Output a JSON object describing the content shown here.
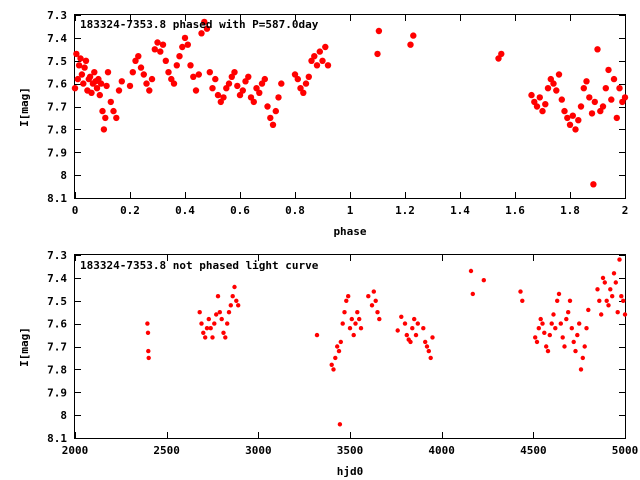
{
  "chart_data": [
    {
      "type": "scatter",
      "title": "183324-7353.8 phased with P=587.0day",
      "xlabel": "phase",
      "ylabel": "I[mag]",
      "xlim": [
        0,
        2
      ],
      "ylim": [
        7.3,
        8.1
      ],
      "y_inverted": true,
      "grid": false,
      "legend": "none",
      "marker_color": "#ff0000",
      "xticks": [
        "0",
        "0.2",
        "0.4",
        "0.6",
        "0.8",
        "1",
        "1.2",
        "1.4",
        "1.6",
        "1.8",
        "2"
      ],
      "yticks": [
        "7.3",
        "7.4",
        "7.5",
        "7.6",
        "7.7",
        "7.8",
        "7.9",
        "8",
        "8.1"
      ],
      "series": [
        {
          "x": [
            0.0,
            0.005,
            0.01,
            0.015,
            0.02,
            0.025,
            0.03,
            0.035,
            0.04,
            0.045,
            0.05,
            0.055,
            0.06,
            0.065,
            0.07,
            0.075,
            0.08,
            0.085,
            0.09,
            0.095,
            0.1,
            0.105,
            0.11,
            0.115,
            0.12,
            0.13,
            0.14,
            0.15,
            0.16,
            0.17,
            0.2,
            0.21,
            0.22,
            0.23,
            0.24,
            0.25,
            0.26,
            0.27,
            0.28,
            0.29,
            0.3,
            0.31,
            0.32,
            0.33,
            0.34,
            0.35,
            0.36,
            0.37,
            0.38,
            0.39,
            0.4,
            0.41,
            0.42,
            0.43,
            0.44,
            0.45,
            0.46,
            0.47,
            0.48,
            0.49,
            0.5,
            0.51,
            0.52,
            0.53,
            0.54,
            0.55,
            0.56,
            0.57,
            0.58,
            0.59,
            0.6,
            0.61,
            0.62,
            0.63,
            0.64,
            0.65,
            0.66,
            0.67,
            0.68,
            0.69,
            0.7,
            0.71,
            0.72,
            0.73,
            0.74,
            0.75,
            0.8,
            0.81,
            0.82,
            0.83,
            0.84,
            0.85,
            0.86,
            0.87,
            0.88,
            0.89,
            0.9,
            0.91,
            0.92,
            1.1,
            1.105,
            1.22,
            1.23,
            1.54,
            1.55,
            1.66,
            1.67,
            1.68,
            1.69,
            1.7,
            1.71,
            1.72,
            1.73,
            1.74,
            1.75,
            1.76,
            1.77,
            1.78,
            1.79,
            1.8,
            1.81,
            1.82,
            1.83,
            1.84,
            1.85,
            1.86,
            1.87,
            1.88,
            1.885,
            1.89,
            1.9,
            1.91,
            1.92,
            1.93,
            1.94,
            1.95,
            1.96,
            1.97,
            1.98,
            1.99,
            2.0
          ],
          "y": [
            7.62,
            7.47,
            7.58,
            7.52,
            7.49,
            7.56,
            7.6,
            7.53,
            7.5,
            7.63,
            7.58,
            7.57,
            7.64,
            7.6,
            7.55,
            7.59,
            7.62,
            7.58,
            7.65,
            7.6,
            7.72,
            7.8,
            7.75,
            7.61,
            7.55,
            7.68,
            7.72,
            7.75,
            7.63,
            7.59,
            7.61,
            7.55,
            7.5,
            7.48,
            7.53,
            7.56,
            7.6,
            7.63,
            7.58,
            7.45,
            7.42,
            7.46,
            7.43,
            7.5,
            7.55,
            7.58,
            7.6,
            7.52,
            7.48,
            7.44,
            7.4,
            7.43,
            7.52,
            7.57,
            7.63,
            7.56,
            7.38,
            7.33,
            7.36,
            7.55,
            7.62,
            7.58,
            7.65,
            7.68,
            7.66,
            7.62,
            7.6,
            7.57,
            7.55,
            7.61,
            7.65,
            7.63,
            7.59,
            7.57,
            7.66,
            7.68,
            7.62,
            7.64,
            7.6,
            7.58,
            7.7,
            7.75,
            7.78,
            7.72,
            7.66,
            7.6,
            7.56,
            7.58,
            7.62,
            7.64,
            7.6,
            7.57,
            7.5,
            7.48,
            7.52,
            7.46,
            7.5,
            7.44,
            7.52,
            7.47,
            7.37,
            7.43,
            7.39,
            7.49,
            7.47,
            7.65,
            7.68,
            7.7,
            7.66,
            7.72,
            7.69,
            7.62,
            7.58,
            7.6,
            7.63,
            7.56,
            7.67,
            7.72,
            7.75,
            7.78,
            7.74,
            7.8,
            7.76,
            7.7,
            7.62,
            7.59,
            7.66,
            7.73,
            8.04,
            7.68,
            7.45,
            7.72,
            7.7,
            7.62,
            7.54,
            7.67,
            7.58,
            7.75,
            7.62,
            7.68,
            7.66
          ]
        }
      ],
      "annotation": "183324-7353.8 phased with P=587.0day"
    },
    {
      "type": "scatter",
      "title": "183324-7353.8 not phased light curve",
      "xlabel": "hjd0",
      "ylabel": "I[mag]",
      "xlim": [
        2000,
        5000
      ],
      "ylim": [
        7.3,
        8.1
      ],
      "y_inverted": true,
      "grid": false,
      "legend": "none",
      "marker_color": "#ff0000",
      "xticks": [
        "2000",
        "2500",
        "3000",
        "3500",
        "4000",
        "4500",
        "5000"
      ],
      "yticks": [
        "7.3",
        "7.4",
        "7.5",
        "7.6",
        "7.7",
        "7.8",
        "7.9",
        "8",
        "8.1"
      ],
      "series": [
        {
          "x": [
            2395,
            2398,
            2400,
            2402,
            2680,
            2690,
            2700,
            2710,
            2720,
            2730,
            2740,
            2750,
            2760,
            2770,
            2780,
            2790,
            2800,
            2810,
            2820,
            2830,
            2840,
            2850,
            2860,
            2870,
            2880,
            2890,
            3320,
            3400,
            3410,
            3420,
            3430,
            3440,
            3450,
            3460,
            3470,
            3480,
            3490,
            3500,
            3510,
            3520,
            3530,
            3540,
            3550,
            3560,
            3600,
            3620,
            3630,
            3640,
            3650,
            3660,
            3760,
            3780,
            3800,
            3810,
            3820,
            3830,
            3840,
            3850,
            3860,
            3870,
            3900,
            3910,
            3920,
            3930,
            3940,
            3950,
            4160,
            4170,
            4230,
            4430,
            4440,
            4510,
            4520,
            4530,
            4540,
            4550,
            4560,
            4570,
            4580,
            4590,
            4600,
            4610,
            4620,
            4630,
            4640,
            4650,
            4660,
            4670,
            4680,
            4690,
            4700,
            4710,
            4720,
            4730,
            4740,
            4750,
            4760,
            4770,
            4780,
            4790,
            4800,
            4850,
            4860,
            4870,
            4880,
            4890,
            4900,
            4910,
            4920,
            4930,
            4940,
            4950,
            4960,
            4970,
            4980,
            4990,
            5000,
            3445
          ],
          "y": [
            7.6,
            7.64,
            7.72,
            7.75,
            7.55,
            7.6,
            7.64,
            7.66,
            7.62,
            7.58,
            7.62,
            7.66,
            7.6,
            7.56,
            7.48,
            7.55,
            7.58,
            7.64,
            7.66,
            7.6,
            7.55,
            7.52,
            7.48,
            7.44,
            7.5,
            7.52,
            7.65,
            7.78,
            7.8,
            7.75,
            7.7,
            7.72,
            7.68,
            7.6,
            7.55,
            7.5,
            7.48,
            7.62,
            7.58,
            7.65,
            7.6,
            7.55,
            7.58,
            7.62,
            7.48,
            7.52,
            7.46,
            7.5,
            7.55,
            7.58,
            7.63,
            7.57,
            7.6,
            7.65,
            7.67,
            7.68,
            7.62,
            7.58,
            7.65,
            7.6,
            7.62,
            7.68,
            7.7,
            7.72,
            7.75,
            7.66,
            7.37,
            7.47,
            7.41,
            7.46,
            7.5,
            7.66,
            7.68,
            7.62,
            7.58,
            7.6,
            7.64,
            7.7,
            7.72,
            7.65,
            7.6,
            7.56,
            7.62,
            7.5,
            7.47,
            7.6,
            7.66,
            7.7,
            7.58,
            7.55,
            7.5,
            7.62,
            7.68,
            7.72,
            7.65,
            7.6,
            7.8,
            7.75,
            7.7,
            7.62,
            7.54,
            7.45,
            7.5,
            7.56,
            7.4,
            7.42,
            7.5,
            7.52,
            7.45,
            7.48,
            7.38,
            7.42,
            7.55,
            7.32,
            7.48,
            7.5,
            7.56,
            8.04
          ]
        }
      ],
      "annotation": "183324-7353.8 not phased light curve"
    }
  ]
}
